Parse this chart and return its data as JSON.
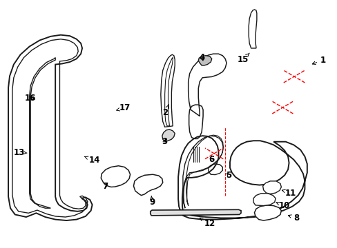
{
  "background_color": "#ffffff",
  "line_color": "#1a1a1a",
  "red_dash_color": "#ff0000",
  "fig_width": 4.89,
  "fig_height": 3.6,
  "dpi": 100,
  "label_arrows": {
    "1": {
      "tp": [
        0.96,
        0.76
      ],
      "ap": [
        0.92,
        0.74
      ]
    },
    "2": {
      "tp": [
        0.49,
        0.545
      ],
      "ap": [
        0.5,
        0.58
      ]
    },
    "3": {
      "tp": [
        0.488,
        0.43
      ],
      "ap": [
        0.493,
        0.448
      ]
    },
    "4": {
      "tp": [
        0.598,
        0.77
      ],
      "ap": [
        0.605,
        0.748
      ]
    },
    "5": {
      "tp": [
        0.678,
        0.292
      ],
      "ap": [
        0.668,
        0.308
      ]
    },
    "6": {
      "tp": [
        0.627,
        0.355
      ],
      "ap": [
        0.618,
        0.37
      ]
    },
    "7": {
      "tp": [
        0.31,
        0.248
      ],
      "ap": [
        0.323,
        0.265
      ]
    },
    "8": {
      "tp": [
        0.88,
        0.118
      ],
      "ap": [
        0.848,
        0.132
      ]
    },
    "9": {
      "tp": [
        0.45,
        0.182
      ],
      "ap": [
        0.448,
        0.208
      ]
    },
    "10": {
      "tp": [
        0.845,
        0.168
      ],
      "ap": [
        0.818,
        0.182
      ]
    },
    "11": {
      "tp": [
        0.862,
        0.22
      ],
      "ap": [
        0.835,
        0.232
      ]
    },
    "12": {
      "tp": [
        0.622,
        0.095
      ],
      "ap": [
        0.59,
        0.12
      ]
    },
    "13": {
      "tp": [
        0.055,
        0.385
      ],
      "ap": [
        0.078,
        0.382
      ]
    },
    "14": {
      "tp": [
        0.278,
        0.352
      ],
      "ap": [
        0.248,
        0.368
      ]
    },
    "15": {
      "tp": [
        0.72,
        0.762
      ],
      "ap": [
        0.74,
        0.788
      ]
    },
    "16": {
      "tp": [
        0.088,
        0.605
      ],
      "ap": [
        0.108,
        0.598
      ]
    },
    "17": {
      "tp": [
        0.368,
        0.565
      ],
      "ap": [
        0.342,
        0.555
      ]
    }
  }
}
